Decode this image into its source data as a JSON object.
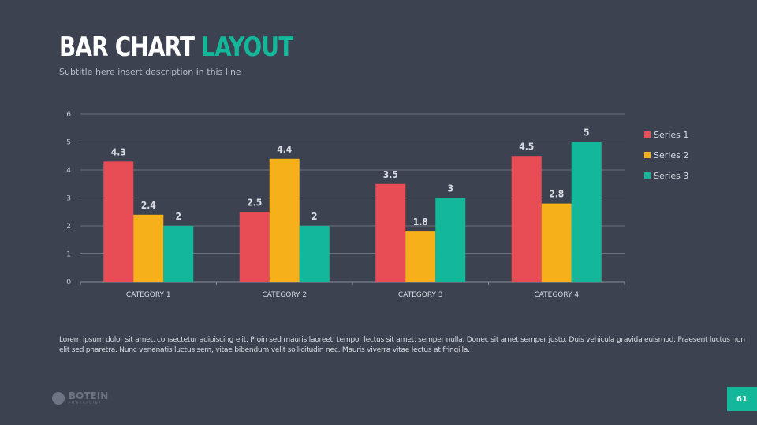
{
  "header": {
    "title_main": "BAR CHART",
    "title_accent": "LAYOUT",
    "subtitle": "Subtitle here insert  description in this line"
  },
  "body_text": "Lorem ipsum dolor sit amet, consectetur adipiscing elit. Proin sed mauris laoreet, tempor lectus sit amet, semper nulla. Donec sit amet semper justo. Duis vehicula gravida euismod. Praesent luctus non elit sed pharetra. Nunc venenatis luctus sem, vitae bibendum velit sollicitudin nec. Mauris viverra vitae lectus at fringilla.",
  "logo": {
    "name": "BOTEIN",
    "sub": "POWERPOINT"
  },
  "page_number": "61",
  "chart_data": {
    "type": "bar",
    "categories": [
      "CATEGORY 1",
      "CATEGORY 2",
      "CATEGORY 3",
      "CATEGORY 4"
    ],
    "series": [
      {
        "name": "Series 1",
        "values": [
          4.3,
          2.5,
          3.5,
          4.5
        ],
        "color": "#e84c55"
      },
      {
        "name": "Series 2",
        "values": [
          2.4,
          4.4,
          1.8,
          2.8
        ],
        "color": "#f5b01a"
      },
      {
        "name": "Series 3",
        "values": [
          2,
          2,
          3,
          5
        ],
        "color": "#13b89b"
      }
    ],
    "ylim": [
      0,
      6
    ],
    "yticks": [
      0,
      1,
      2,
      3,
      4,
      5,
      6
    ],
    "grid": true,
    "legend": "right"
  }
}
